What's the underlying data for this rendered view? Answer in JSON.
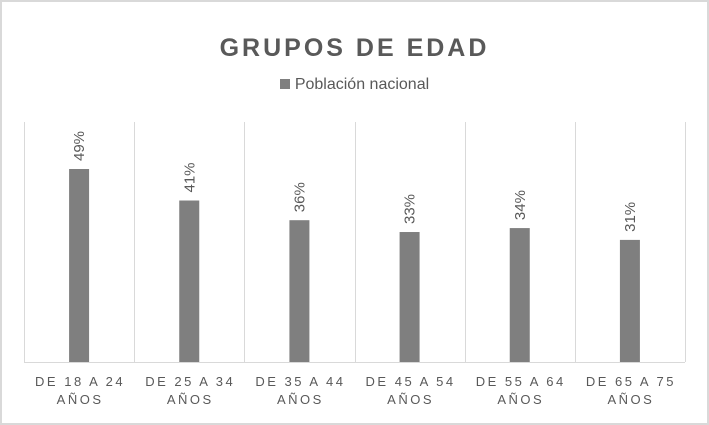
{
  "chart_data": {
    "type": "bar",
    "title": "GRUPOS DE EDAD",
    "categories": [
      [
        "DE 18 A 24",
        "AÑOS"
      ],
      [
        "DE 25 A 34",
        "AÑOS"
      ],
      [
        "DE 35 A 44",
        "AÑOS"
      ],
      [
        "DE 45 A 54",
        "AÑOS"
      ],
      [
        "DE 55 A 64",
        "AÑOS"
      ],
      [
        "DE 65 A 75",
        "AÑOS"
      ]
    ],
    "series": [
      {
        "name": "Población nacional",
        "values": [
          49,
          41,
          36,
          33,
          34,
          31
        ],
        "color": "#7f7f7f"
      }
    ],
    "data_labels": [
      "49%",
      "41%",
      "36%",
      "33%",
      "34%",
      "31%"
    ],
    "xlabel": "",
    "ylabel": "",
    "ylim": [
      0,
      60
    ],
    "grid": "vertical category separators",
    "legend": "top"
  }
}
